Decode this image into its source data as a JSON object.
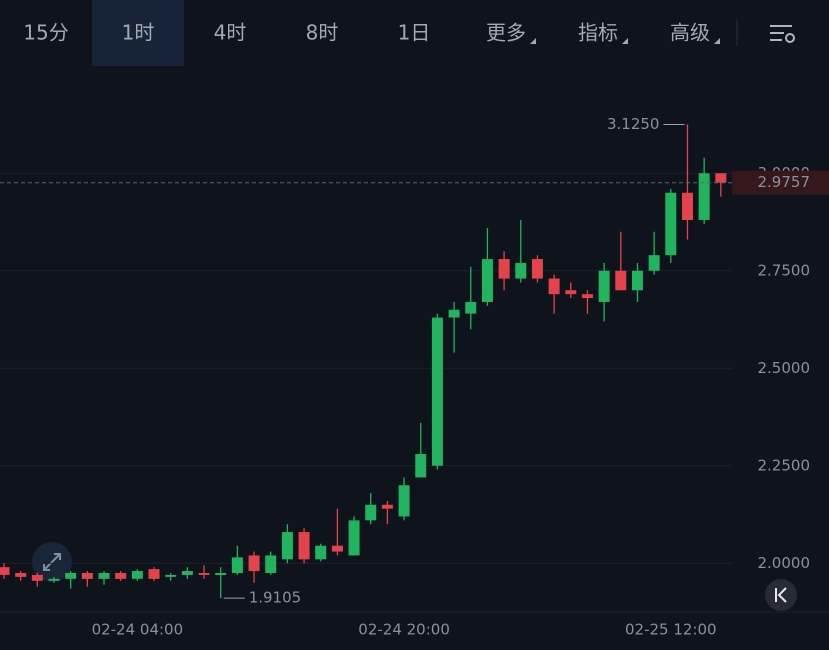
{
  "toolbar": {
    "tabs": [
      "15分",
      "1时",
      "4时",
      "8时",
      "1日",
      "更多",
      "指标",
      "高级"
    ],
    "active": 1
  },
  "chart_data": {
    "type": "candlestick",
    "categories": [
      null,
      null,
      null,
      null,
      null,
      null,
      null,
      null,
      "02-24 04:00",
      null,
      null,
      null,
      null,
      null,
      null,
      null,
      null,
      null,
      null,
      null,
      null,
      null,
      null,
      null,
      "02-24 20:00",
      null,
      null,
      null,
      null,
      null,
      null,
      null,
      null,
      null,
      null,
      null,
      null,
      null,
      null,
      null,
      "02-25 12:00",
      null,
      null,
      null
    ],
    "open": [
      1.99,
      1.975,
      1.97,
      1.955,
      1.96,
      1.975,
      1.96,
      1.975,
      1.96,
      1.985,
      1.965,
      1.97,
      1.975,
      1.97,
      1.975,
      2.02,
      1.975,
      2.01,
      2.08,
      2.01,
      2.045,
      2.02,
      2.11,
      2.15,
      2.12,
      2.22,
      2.25,
      2.63,
      2.64,
      2.67,
      2.78,
      2.73,
      2.78,
      2.73,
      2.7,
      2.69,
      2.67,
      2.75,
      2.7,
      2.75,
      2.79,
      2.95,
      2.88,
      3.0
    ],
    "high": [
      2.0,
      1.98,
      1.975,
      1.965,
      1.98,
      1.98,
      1.98,
      1.98,
      1.985,
      1.99,
      1.975,
      1.99,
      1.995,
      1.99,
      2.045,
      2.03,
      2.03,
      2.1,
      2.09,
      2.05,
      2.14,
      2.12,
      2.18,
      2.16,
      2.22,
      2.36,
      2.64,
      2.67,
      2.76,
      2.86,
      2.8,
      2.88,
      2.79,
      2.74,
      2.72,
      2.7,
      2.77,
      2.85,
      2.77,
      2.85,
      2.96,
      3.125,
      3.04,
      3.0
    ],
    "low": [
      1.96,
      1.955,
      1.94,
      1.95,
      1.935,
      1.94,
      1.945,
      1.955,
      1.955,
      1.955,
      1.955,
      1.96,
      1.96,
      1.9105,
      1.97,
      1.95,
      1.97,
      2.0,
      2.0,
      2.005,
      2.02,
      2.02,
      2.1,
      2.1,
      2.11,
      2.22,
      2.24,
      2.54,
      2.6,
      2.66,
      2.7,
      2.72,
      2.72,
      2.64,
      2.68,
      2.64,
      2.62,
      2.7,
      2.67,
      2.74,
      2.77,
      2.83,
      2.87,
      2.94
    ],
    "close": [
      1.97,
      1.965,
      1.955,
      1.96,
      1.975,
      1.96,
      1.975,
      1.96,
      1.98,
      1.96,
      1.97,
      1.98,
      1.97,
      1.975,
      2.015,
      1.98,
      2.02,
      2.08,
      2.01,
      2.045,
      2.03,
      2.11,
      2.15,
      2.14,
      2.2,
      2.28,
      2.63,
      2.65,
      2.67,
      2.78,
      2.73,
      2.77,
      2.73,
      2.69,
      2.69,
      2.68,
      2.75,
      2.7,
      2.75,
      2.79,
      2.95,
      2.88,
      3.0,
      2.9757
    ],
    "up_color": "#22b35e",
    "down_color": "#e5434c",
    "ylim": [
      1.875,
      3.275
    ],
    "yticks": [
      {
        "value": 2,
        "label": "2.0000"
      },
      {
        "value": 2.25,
        "label": "2.2500"
      },
      {
        "value": 2.5,
        "label": "2.5000"
      },
      {
        "value": 2.75,
        "label": "2.7500"
      },
      {
        "value": 3,
        "label": "3.0000"
      }
    ],
    "grid": true,
    "high_label": {
      "value": 3.125,
      "label": "3.1250"
    },
    "low_label": {
      "value": 1.9105,
      "label": "1.9105"
    },
    "last_price": {
      "value": 2.9757,
      "label": "2.9757"
    }
  }
}
